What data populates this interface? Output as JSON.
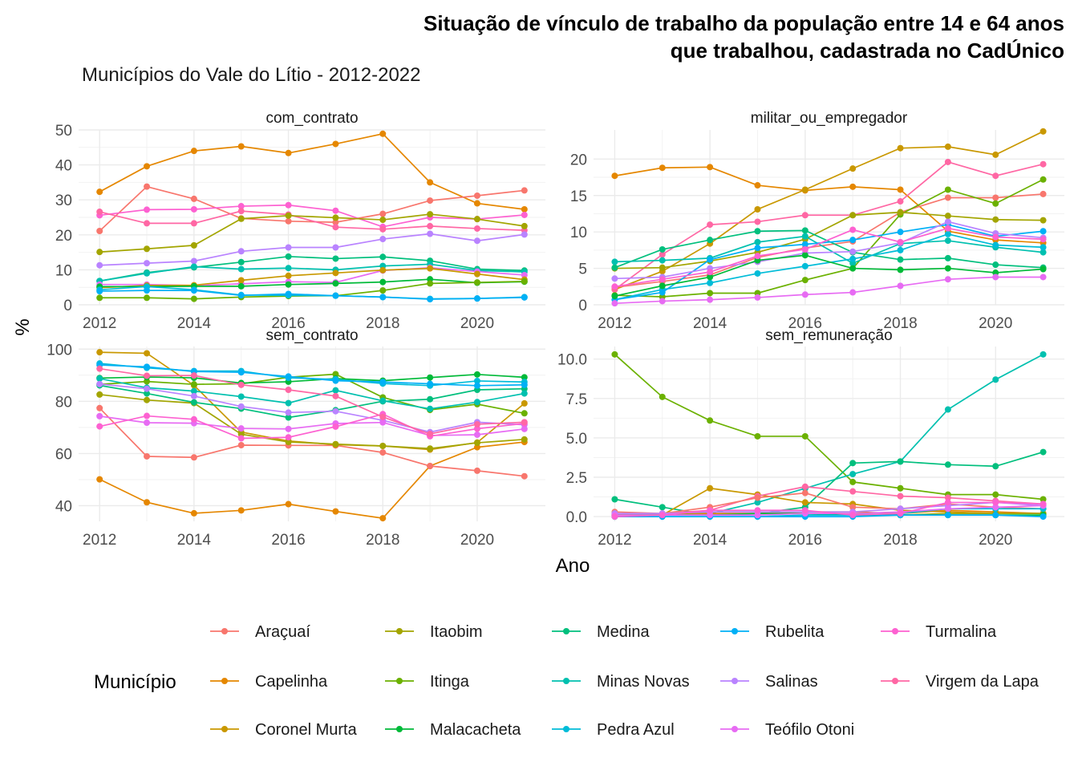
{
  "title_line1": "Situação de vínculo de trabalho da população entre 14 e 64 anos",
  "title_line2": "que trabalhou, cadastrada no CadÚnico",
  "subtitle": "Municípios do Vale do Lítio - 2012-2022",
  "xlabel": "Ano",
  "ylabel": "%",
  "legend_title": "Município",
  "chart_data": {
    "type": "line",
    "x": [
      2012,
      2013,
      2014,
      2015,
      2016,
      2017,
      2018,
      2019,
      2020,
      2021
    ],
    "xlim": [
      2012,
      2021
    ],
    "x_ticks": [
      2012,
      2014,
      2016,
      2018,
      2020
    ],
    "grid": true,
    "legend_position": "bottom",
    "series_colors": {
      "Araçuaí": "#F8766D",
      "Capelinha": "#E58700",
      "Coronel Murta": "#C99800",
      "Itaobim": "#A3A500",
      "Itinga": "#6BB100",
      "Malacacheta": "#00BA38",
      "Medina": "#00BF7D",
      "Minas Novas": "#00C0AF",
      "Pedra Azul": "#00BCD8",
      "Rubelita": "#00B0F6",
      "Salinas": "#B983FF",
      "Teófilo Otoni": "#E76BF3",
      "Turmalina": "#FD61D1",
      "Virgem da Lapa": "#FF67A4"
    },
    "legend_order": [
      "Araçuaí",
      "Itaobim",
      "Medina",
      "Rubelita",
      "Turmalina",
      "Capelinha",
      "Itinga",
      "Minas Novas",
      "Salinas",
      "Virgem da Lapa",
      "Coronel Murta",
      "Malacacheta",
      "Pedra Azul",
      "Teófilo Otoni"
    ],
    "panels": [
      {
        "name": "com_contrato",
        "ylim": [
          0,
          50
        ],
        "y_ticks": [
          0,
          10,
          20,
          30,
          40,
          50
        ],
        "y_tick_labels": [
          "0",
          "10",
          "20",
          "30",
          "40",
          "50"
        ],
        "series": [
          {
            "name": "Capelinha",
            "values": [
              32.3,
              39.6,
              44.0,
              45.3,
              43.4,
              46.0,
              48.9,
              35.0,
              29.0,
              27.3
            ]
          },
          {
            "name": "Araçuaí",
            "values": [
              21.1,
              33.8,
              30.3,
              24.7,
              23.9,
              23.6,
              26.0,
              29.8,
              31.2,
              32.7
            ]
          },
          {
            "name": "Turmalina",
            "values": [
              25.6,
              27.2,
              27.3,
              28.2,
              28.5,
              26.9,
              22.3,
              25.0,
              24.5,
              25.7
            ]
          },
          {
            "name": "Virgem da Lapa",
            "values": [
              26.6,
              23.3,
              23.3,
              26.8,
              25.8,
              22.2,
              21.6,
              22.5,
              21.8,
              21.3
            ]
          },
          {
            "name": "Itaobim",
            "values": [
              15.1,
              16.0,
              17.0,
              24.6,
              25.5,
              24.9,
              24.3,
              25.9,
              24.5,
              22.5
            ]
          },
          {
            "name": "Salinas",
            "values": [
              11.3,
              11.9,
              12.5,
              15.3,
              16.4,
              16.4,
              18.8,
              20.3,
              18.3,
              20.1
            ]
          },
          {
            "name": "Medina",
            "values": [
              6.8,
              9.2,
              10.7,
              12.2,
              13.8,
              13.2,
              13.7,
              12.6,
              10.2,
              9.8
            ]
          },
          {
            "name": "Minas Novas",
            "values": [
              6.8,
              9.0,
              10.9,
              10.2,
              10.5,
              10.0,
              11.1,
              11.6,
              9.8,
              9.4
            ]
          },
          {
            "name": "Teófilo Otoni",
            "values": [
              5.8,
              5.8,
              5.5,
              6.0,
              6.6,
              6.4,
              9.8,
              10.6,
              9.5,
              8.5
            ]
          },
          {
            "name": "Coronel Murta",
            "values": [
              4.9,
              5.5,
              5.6,
              7.0,
              8.3,
              9.1,
              9.9,
              10.4,
              8.8,
              7.2
            ]
          },
          {
            "name": "Malacacheta",
            "values": [
              5.2,
              5.2,
              5.3,
              5.3,
              5.8,
              6.1,
              6.5,
              7.3,
              6.3,
              6.6
            ]
          },
          {
            "name": "Itinga",
            "values": [
              2.0,
              2.0,
              1.7,
              2.2,
              2.5,
              2.6,
              4.1,
              6.1,
              6.4,
              6.7
            ]
          },
          {
            "name": "Pedra Azul",
            "values": [
              4.3,
              5.2,
              4.3,
              2.8,
              2.7,
              2.6,
              2.2,
              1.7,
              1.8,
              2.2
            ]
          },
          {
            "name": "Rubelita",
            "values": [
              3.9,
              4.1,
              4.1,
              2.7,
              3.1,
              2.6,
              2.2,
              1.6,
              1.8,
              2.1
            ]
          },
          {
            "name": "Araçuaí",
            "values": [],
            "skip": true
          }
        ]
      },
      {
        "name": "militar_ou_empregador",
        "ylim": [
          0,
          24
        ],
        "y_ticks": [
          0,
          5,
          10,
          15,
          20
        ],
        "y_tick_labels": [
          "0",
          "5",
          "10",
          "15",
          "20"
        ],
        "series": [
          {
            "name": "Capelinha",
            "values": [
              17.7,
              18.8,
              18.9,
              16.4,
              15.7,
              16.2,
              15.8,
              10.1,
              8.9,
              8.5
            ]
          },
          {
            "name": "Coronel Murta",
            "values": [
              2.1,
              4.6,
              8.4,
              13.1,
              15.8,
              18.7,
              21.5,
              21.7,
              20.6,
              23.8
            ]
          },
          {
            "name": "Virgem da Lapa",
            "values": [
              2.1,
              6.9,
              11.0,
              11.4,
              12.3,
              12.3,
              14.2,
              19.6,
              17.7,
              19.3
            ]
          },
          {
            "name": "Araçuaí",
            "values": [
              2.4,
              3.2,
              4.1,
              6.5,
              7.8,
              8.7,
              12.7,
              14.7,
              14.7,
              15.2
            ]
          },
          {
            "name": "Itinga",
            "values": [
              1.3,
              1.1,
              1.6,
              1.6,
              3.4,
              5.0,
              12.4,
              15.8,
              13.9,
              17.2
            ]
          },
          {
            "name": "Itaobim",
            "values": [
              5.0,
              5.1,
              6.0,
              7.2,
              9.0,
              12.3,
              12.7,
              12.2,
              11.7,
              11.6
            ]
          },
          {
            "name": "Medina",
            "values": [
              5.1,
              7.6,
              8.9,
              10.1,
              10.2,
              7.2,
              6.2,
              6.4,
              5.5,
              5.1
            ]
          },
          {
            "name": "Minas Novas",
            "values": [
              5.9,
              6.1,
              6.4,
              8.6,
              9.4,
              5.7,
              8.4,
              8.8,
              7.9,
              7.2
            ]
          },
          {
            "name": "Pedra Azul",
            "values": [
              0.7,
              2.1,
              3.0,
              4.3,
              5.3,
              6.3,
              7.5,
              9.7,
              8.2,
              7.9
            ]
          },
          {
            "name": "Rubelita",
            "values": [
              0.7,
              1.7,
              6.2,
              7.8,
              8.3,
              8.9,
              10.0,
              11.0,
              9.4,
              10.1
            ]
          },
          {
            "name": "Salinas",
            "values": [
              3.6,
              3.8,
              5.0,
              5.9,
              7.1,
              7.3,
              8.5,
              11.4,
              9.8,
              9.2
            ]
          },
          {
            "name": "Malacacheta",
            "values": [
              1.2,
              2.6,
              3.8,
              6.1,
              6.8,
              5.0,
              4.8,
              5.0,
              4.4,
              4.9
            ]
          },
          {
            "name": "Turmalina",
            "values": [
              2.5,
              3.5,
              4.5,
              6.7,
              7.6,
              10.3,
              8.6,
              10.5,
              9.3,
              9.0
            ]
          },
          {
            "name": "Teófilo Otoni",
            "values": [
              0.2,
              0.5,
              0.7,
              1.0,
              1.4,
              1.7,
              2.6,
              3.5,
              3.8,
              3.8
            ]
          }
        ]
      },
      {
        "name": "sem_contrato",
        "ylim": [
          34,
          101
        ],
        "y_ticks": [
          40,
          60,
          80,
          100
        ],
        "y_tick_labels": [
          "40",
          "60",
          "80",
          "100"
        ],
        "series": [
          {
            "name": "Capelinha",
            "values": [
              50.1,
              41.3,
              37.1,
              38.2,
              40.6,
              37.8,
              35.2,
              55.2,
              62.4,
              64.4
            ]
          },
          {
            "name": "Araçuaí",
            "values": [
              77.4,
              58.9,
              58.5,
              63.2,
              63.1,
              63.1,
              60.4,
              55.2,
              53.4,
              51.3
            ]
          },
          {
            "name": "Coronel Murta",
            "values": [
              98.8,
              98.4,
              86.1,
              68.2,
              64.8,
              63.4,
              62.9,
              61.5,
              64.2,
              79.2
            ]
          },
          {
            "name": "Itaobim",
            "values": [
              82.6,
              80.5,
              79.3,
              67.4,
              64.4,
              63.6,
              62.9,
              61.9,
              64.1,
              65.4
            ]
          },
          {
            "name": "Itinga",
            "values": [
              86.5,
              87.6,
              86.5,
              86.7,
              89.2,
              90.4,
              81.5,
              76.7,
              78.9,
              75.4
            ]
          },
          {
            "name": "Malacacheta",
            "values": [
              88.9,
              89.3,
              89.0,
              87.0,
              87.5,
              88.7,
              87.9,
              89.1,
              90.3,
              89.2
            ]
          },
          {
            "name": "Medina",
            "values": [
              86.1,
              83.0,
              79.6,
              77.2,
              73.8,
              76.6,
              80.0,
              80.8,
              84.4,
              84.8
            ]
          },
          {
            "name": "Minas Novas",
            "values": [
              88.7,
              85.2,
              83.9,
              81.8,
              79.3,
              84.2,
              80.2,
              77.1,
              79.7,
              83.0
            ]
          },
          {
            "name": "Pedra Azul",
            "values": [
              94.5,
              92.8,
              91.6,
              91.6,
              89.0,
              88.4,
              86.8,
              86.0,
              87.8,
              87.4
            ]
          },
          {
            "name": "Rubelita",
            "values": [
              93.9,
              93.2,
              91.4,
              91.1,
              89.5,
              87.9,
              87.4,
              86.7,
              86.0,
              86.3
            ]
          },
          {
            "name": "Salinas",
            "values": [
              86.6,
              84.8,
              82.0,
              78.0,
              75.7,
              76.2,
              72.7,
              68.2,
              72.0,
              71.0
            ]
          },
          {
            "name": "Teófilo Otoni",
            "values": [
              74.3,
              71.8,
              71.6,
              69.6,
              69.4,
              71.5,
              71.9,
              66.9,
              67.2,
              69.4
            ]
          },
          {
            "name": "Turmalina",
            "values": [
              70.4,
              74.4,
              73.1,
              65.8,
              66.2,
              70.3,
              75.1,
              66.6,
              69.5,
              71.5
            ]
          },
          {
            "name": "Virgem da Lapa",
            "values": [
              92.5,
              89.8,
              89.9,
              86.3,
              84.4,
              82.0,
              74.0,
              67.5,
              71.2,
              72.0
            ]
          }
        ]
      },
      {
        "name": "sem_remuneração",
        "ylim": [
          -0.3,
          10.8
        ],
        "y_ticks": [
          0,
          2.5,
          5,
          7.5,
          10
        ],
        "y_tick_labels": [
          "0.0",
          "2.5",
          "5.0",
          "7.5",
          "10.0"
        ],
        "series": [
          {
            "name": "Itinga",
            "values": [
              10.3,
              7.6,
              6.1,
              5.1,
              5.1,
              2.2,
              1.8,
              1.4,
              1.4,
              1.1
            ]
          },
          {
            "name": "Minas Novas",
            "values": [
              0.1,
              0.1,
              0.2,
              0.9,
              1.8,
              2.7,
              3.5,
              6.8,
              8.7,
              10.3
            ]
          },
          {
            "name": "Medina",
            "values": [
              1.1,
              0.6,
              0.1,
              0.2,
              0.6,
              3.4,
              3.5,
              3.3,
              3.2,
              4.1
            ]
          },
          {
            "name": "Coronel Murta",
            "values": [
              0.1,
              0.1,
              1.8,
              1.4,
              0.9,
              0.8,
              0.4,
              0.3,
              0.2,
              0.2
            ]
          },
          {
            "name": "Virgem da Lapa",
            "values": [
              0.2,
              0.2,
              0.4,
              1.3,
              1.9,
              1.6,
              1.3,
              1.2,
              1.0,
              0.8
            ]
          },
          {
            "name": "Araçuaí",
            "values": [
              0.3,
              0.2,
              0.6,
              1.2,
              1.5,
              0.6,
              0.5,
              0.8,
              0.6,
              0.5
            ]
          },
          {
            "name": "Capelinha",
            "values": [
              0.1,
              0.1,
              0.2,
              0.2,
              0.3,
              0.3,
              0.2,
              0.4,
              0.3,
              0.2
            ]
          },
          {
            "name": "Itaobim",
            "values": [
              0.1,
              0.1,
              0.3,
              0.3,
              0.2,
              0.2,
              0.1,
              0.2,
              0.2,
              0.2
            ]
          },
          {
            "name": "Malacacheta",
            "values": [
              0.1,
              0.1,
              0.1,
              0.2,
              0.2,
              0.1,
              0.1,
              0.1,
              0.1,
              0.1
            ]
          },
          {
            "name": "Pedra Azul",
            "values": [
              0.0,
              0.0,
              0.0,
              0.0,
              0.1,
              0.1,
              0.2,
              0.5,
              0.5,
              0.5
            ]
          },
          {
            "name": "Rubelita",
            "values": [
              0.0,
              0.0,
              0.0,
              0.0,
              0.0,
              0.0,
              0.1,
              0.1,
              0.1,
              0.0
            ]
          },
          {
            "name": "Salinas",
            "values": [
              0.2,
              0.2,
              0.3,
              0.3,
              0.3,
              0.3,
              0.5,
              0.7,
              0.9,
              0.7
            ]
          },
          {
            "name": "Teófilo Otoni",
            "values": [
              0.1,
              0.1,
              0.1,
              0.1,
              0.2,
              0.2,
              0.3,
              0.5,
              0.6,
              0.7
            ]
          },
          {
            "name": "Turmalina",
            "values": [
              0.0,
              0.1,
              0.4,
              0.4,
              0.4,
              0.1,
              0.2,
              0.9,
              0.9,
              0.8
            ]
          }
        ]
      }
    ]
  }
}
